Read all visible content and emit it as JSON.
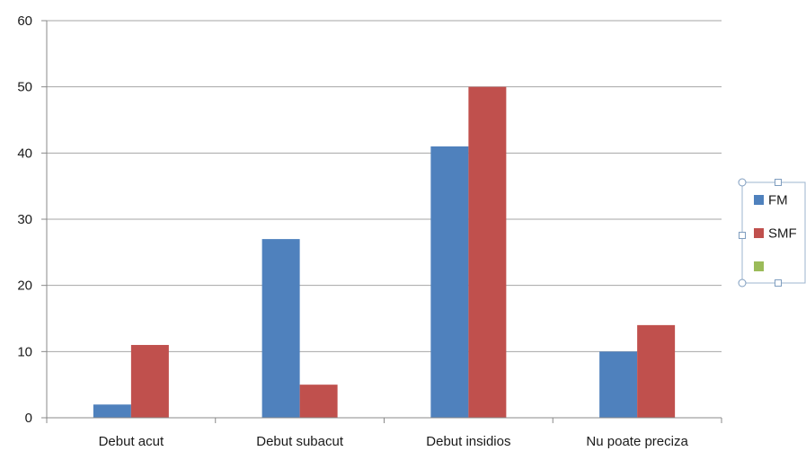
{
  "chart_data": {
    "type": "bar",
    "categories": [
      "Debut acut",
      "Debut subacut",
      "Debut insidios",
      "Nu poate preciza"
    ],
    "series": [
      {
        "name": "FM",
        "color": "#4f81bd",
        "values": [
          2,
          27,
          41,
          10
        ]
      },
      {
        "name": "SMF",
        "color": "#c0504d",
        "values": [
          11,
          5,
          50,
          14
        ]
      },
      {
        "name": "",
        "color": "#9bbb59",
        "values": [
          0,
          0,
          0,
          0
        ]
      }
    ],
    "ylim": [
      0,
      60
    ],
    "yticks": [
      0,
      10,
      20,
      30,
      40,
      50,
      60
    ],
    "grid": true,
    "legend_position": "right"
  }
}
